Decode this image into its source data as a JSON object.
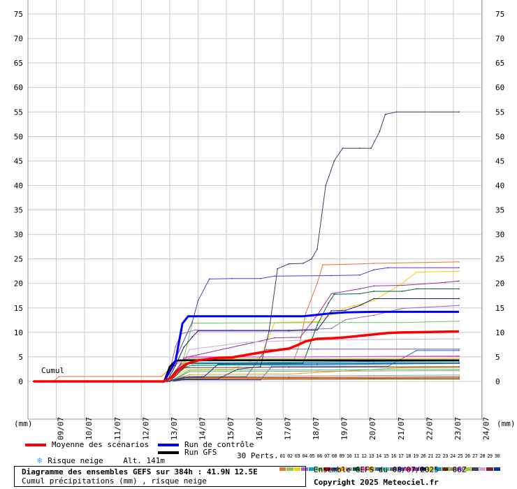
{
  "chart_data": {
    "type": "line",
    "y_axis": {
      "min": 0,
      "max": 75,
      "step": 5,
      "unit_label": "(mm)"
    },
    "cumul_label": "Cumul",
    "x_labels": [
      "09/07",
      "10/07",
      "11/07",
      "12/07",
      "13/07",
      "14/07",
      "15/07",
      "16/07",
      "17/07",
      "18/07",
      "19/07",
      "20/07",
      "21/07",
      "22/07",
      "23/07",
      "24/07"
    ],
    "x_domain": [
      0,
      16
    ],
    "grid": true,
    "colors": {
      "mean": "#ff0000",
      "control": "#0000ff",
      "gfs": "#000000",
      "snow": "#3aa0ff"
    },
    "mean": [
      [
        0,
        0
      ],
      [
        4.6,
        0
      ],
      [
        4.9,
        1
      ],
      [
        5.1,
        2.4
      ],
      [
        5.4,
        3.6
      ],
      [
        5.8,
        4.3
      ],
      [
        6.5,
        4.8
      ],
      [
        7.0,
        4.9
      ],
      [
        7.5,
        5.4
      ],
      [
        8.0,
        5.9
      ],
      [
        8.6,
        6.4
      ],
      [
        9.0,
        6.7
      ],
      [
        9.3,
        7.4
      ],
      [
        9.6,
        8.2
      ],
      [
        10.0,
        8.7
      ],
      [
        10.5,
        8.8
      ],
      [
        11.0,
        9.0
      ],
      [
        11.5,
        9.3
      ],
      [
        12.0,
        9.6
      ],
      [
        12.5,
        9.9
      ],
      [
        13.0,
        10.0
      ],
      [
        14.0,
        10.1
      ],
      [
        15.0,
        10.2
      ]
    ],
    "control": [
      [
        0,
        0
      ],
      [
        4.6,
        0
      ],
      [
        5.0,
        4
      ],
      [
        5.25,
        11.8
      ],
      [
        5.45,
        13.3
      ],
      [
        6.0,
        13.3
      ],
      [
        9.5,
        13.3
      ],
      [
        10.0,
        13.6
      ],
      [
        10.5,
        13.9
      ],
      [
        11.0,
        14.1
      ],
      [
        12.0,
        14.2
      ],
      [
        15.0,
        14.2
      ]
    ],
    "gfs": [
      [
        0,
        0
      ],
      [
        4.6,
        0
      ],
      [
        4.8,
        3
      ],
      [
        5.0,
        4.2
      ],
      [
        5.2,
        4.3
      ],
      [
        15.0,
        4.3
      ]
    ],
    "members": [
      {
        "color": "#e8743b",
        "points": [
          [
            0,
            0
          ],
          [
            0.7,
            0
          ],
          [
            0.9,
            1
          ],
          [
            4.5,
            1
          ],
          [
            4.8,
            2.5
          ],
          [
            5.3,
            4.6
          ],
          [
            9.2,
            4.6
          ],
          [
            9.4,
            8
          ],
          [
            9.6,
            14
          ],
          [
            10.0,
            20
          ],
          [
            10.2,
            23.8
          ],
          [
            11.0,
            23.9
          ],
          [
            12.0,
            24.1
          ],
          [
            15.0,
            24.4
          ]
        ]
      },
      {
        "color": "#8cc63f",
        "points": [
          [
            0,
            0
          ],
          [
            4.6,
            0
          ],
          [
            5.0,
            1.5
          ],
          [
            5.5,
            3.2
          ],
          [
            8.0,
            3.4
          ],
          [
            10.5,
            3.6
          ],
          [
            15,
            3.8
          ]
        ]
      },
      {
        "color": "#ffcc00",
        "points": [
          [
            0,
            0
          ],
          [
            4.7,
            0
          ],
          [
            5.4,
            2.4
          ],
          [
            7.0,
            2.5
          ],
          [
            8.0,
            5
          ],
          [
            8.5,
            12
          ],
          [
            10.0,
            12.2
          ],
          [
            11.0,
            15
          ],
          [
            12.0,
            16.5
          ],
          [
            13.0,
            20
          ],
          [
            13.5,
            22.3
          ],
          [
            15.0,
            22.5
          ]
        ]
      },
      {
        "color": "#9966cc",
        "points": [
          [
            0,
            0
          ],
          [
            4.6,
            0
          ],
          [
            4.8,
            2
          ],
          [
            5.0,
            7
          ],
          [
            5.2,
            9.7
          ],
          [
            5.7,
            10.5
          ],
          [
            7.0,
            10.5
          ],
          [
            8.5,
            10.5
          ],
          [
            9.0,
            10.5
          ],
          [
            10.5,
            10.8
          ],
          [
            11.0,
            12.6
          ],
          [
            12.0,
            13.5
          ],
          [
            13.0,
            14.9
          ],
          [
            15.0,
            15.5
          ]
        ]
      },
      {
        "color": "#00a3c7",
        "points": [
          [
            0,
            0
          ],
          [
            4.7,
            0
          ],
          [
            5.1,
            2.6
          ],
          [
            5.6,
            3.3
          ],
          [
            10,
            3.4
          ],
          [
            15,
            3.7
          ]
        ]
      },
      {
        "color": "#66cc66",
        "points": [
          [
            0,
            0
          ],
          [
            4.7,
            0
          ],
          [
            5.2,
            2.5
          ],
          [
            5.6,
            11.9
          ],
          [
            10.0,
            12.0
          ],
          [
            13.0,
            12.0
          ],
          [
            15.0,
            12.3
          ]
        ]
      },
      {
        "color": "#cc0000",
        "points": [
          [
            0,
            0
          ],
          [
            4.8,
            0
          ],
          [
            5.3,
            0.8
          ],
          [
            9,
            0.8
          ],
          [
            15,
            0.9
          ]
        ]
      },
      {
        "color": "#3366cc",
        "points": [
          [
            0,
            0
          ],
          [
            4.8,
            0
          ],
          [
            5.3,
            0.3
          ],
          [
            8,
            0.3
          ],
          [
            8.4,
            3.1
          ],
          [
            12.5,
            3.1
          ],
          [
            13.5,
            6.3
          ],
          [
            15,
            6.3
          ]
        ]
      },
      {
        "color": "#ff9900",
        "points": [
          [
            0,
            0
          ],
          [
            4.8,
            0
          ],
          [
            5.5,
            1.4
          ],
          [
            9,
            1.5
          ],
          [
            13,
            2.8
          ],
          [
            15,
            2.9
          ]
        ]
      },
      {
        "color": "#999999",
        "points": [
          [
            0,
            0
          ],
          [
            4.8,
            0
          ],
          [
            5.2,
            1.0
          ],
          [
            12,
            1.2
          ],
          [
            15,
            1.3
          ]
        ]
      },
      {
        "color": "#006633",
        "points": [
          [
            0,
            0
          ],
          [
            4.7,
            0
          ],
          [
            5.2,
            3.6
          ],
          [
            9.5,
            3.7
          ],
          [
            10.0,
            11.5
          ],
          [
            10.4,
            16.0
          ],
          [
            10.6,
            17.8
          ],
          [
            11.5,
            17.9
          ],
          [
            12.0,
            18.4
          ],
          [
            13.0,
            18.4
          ],
          [
            13.5,
            18.9
          ],
          [
            15.0,
            18.9
          ]
        ]
      },
      {
        "color": "#ff66cc",
        "points": [
          [
            0,
            0
          ],
          [
            4.8,
            0
          ],
          [
            5.3,
            4.2
          ],
          [
            8.5,
            4.3
          ],
          [
            15,
            4.4
          ]
        ]
      },
      {
        "color": "#cc9900",
        "points": [
          [
            0,
            0
          ],
          [
            4.8,
            0
          ],
          [
            5.4,
            0.6
          ],
          [
            10,
            0.6
          ],
          [
            15,
            0.7
          ]
        ]
      },
      {
        "color": "#336699",
        "points": [
          [
            0,
            0
          ],
          [
            4.8,
            0
          ],
          [
            5.0,
            1.5
          ],
          [
            5.5,
            3.8
          ],
          [
            15,
            4.2
          ]
        ]
      },
      {
        "color": "#33cc99",
        "points": [
          [
            0,
            0
          ],
          [
            4.8,
            0
          ],
          [
            5.5,
            2.3
          ],
          [
            11,
            2.4
          ],
          [
            15,
            2.5
          ]
        ]
      },
      {
        "color": "#666699",
        "points": [
          [
            0,
            0
          ],
          [
            4.9,
            0
          ],
          [
            5.5,
            1.0
          ],
          [
            7.5,
            1.0
          ],
          [
            8.2,
            6.5
          ],
          [
            9.0,
            6.6
          ],
          [
            10,
            6.6
          ],
          [
            15,
            6.6
          ]
        ]
      },
      {
        "color": "#6633cc",
        "points": [
          [
            0,
            0
          ],
          [
            4.6,
            0
          ],
          [
            5.0,
            4.5
          ],
          [
            5.6,
            12.2
          ],
          [
            5.8,
            16.5
          ],
          [
            6.2,
            20.9
          ],
          [
            7.0,
            21.0
          ],
          [
            8.0,
            21.0
          ],
          [
            8.5,
            21.5
          ],
          [
            10.5,
            21.6
          ],
          [
            11.5,
            21.7
          ],
          [
            12.0,
            22.8
          ],
          [
            12.5,
            23.2
          ],
          [
            15.0,
            23.2
          ]
        ]
      },
      {
        "color": "#ff3399",
        "points": [
          [
            0,
            0
          ],
          [
            4.8,
            0
          ],
          [
            5.4,
            5.0
          ],
          [
            9.5,
            5.0
          ],
          [
            15,
            5.1
          ]
        ]
      },
      {
        "color": "#993399",
        "points": [
          [
            0,
            0
          ],
          [
            4.8,
            0
          ],
          [
            5.3,
            4.8
          ],
          [
            8.5,
            8.9
          ],
          [
            9.4,
            9.0
          ],
          [
            10.0,
            13.5
          ],
          [
            10.5,
            17.9
          ],
          [
            11.5,
            18.9
          ],
          [
            12.0,
            19.5
          ],
          [
            13.0,
            19.6
          ],
          [
            14.5,
            20.2
          ],
          [
            15.0,
            20.5
          ]
        ]
      },
      {
        "color": "#1a1a66",
        "points": [
          [
            0,
            0
          ],
          [
            4.7,
            0
          ],
          [
            5.0,
            3.2
          ],
          [
            5.3,
            7.0
          ],
          [
            5.6,
            9.1
          ],
          [
            5.8,
            10.3
          ],
          [
            9.0,
            10.3
          ],
          [
            10.0,
            10.5
          ],
          [
            10.5,
            14.4
          ],
          [
            11.0,
            14.5
          ],
          [
            11.5,
            15.5
          ],
          [
            12.0,
            16.9
          ],
          [
            15.0,
            16.9
          ]
        ]
      },
      {
        "color": "#cccc00",
        "points": [
          [
            0,
            0
          ],
          [
            4.8,
            0
          ],
          [
            5.4,
            4.5
          ],
          [
            10,
            4.6
          ],
          [
            15,
            4.7
          ]
        ]
      },
      {
        "color": "#0099cc",
        "points": [
          [
            0,
            0
          ],
          [
            4.8,
            0
          ],
          [
            5.5,
            3.8
          ],
          [
            12,
            3.9
          ],
          [
            15,
            4.0
          ]
        ]
      },
      {
        "color": "#663300",
        "points": [
          [
            0,
            0
          ],
          [
            4.8,
            0
          ],
          [
            5.3,
            0.4
          ],
          [
            12,
            0.5
          ],
          [
            15,
            0.5
          ]
        ]
      },
      {
        "color": "#999966",
        "points": [
          [
            0,
            0
          ],
          [
            4.8,
            0
          ],
          [
            5.5,
            2.0
          ],
          [
            10,
            2.1
          ],
          [
            15,
            2.2
          ]
        ]
      },
      {
        "color": "#cc66ff",
        "points": [
          [
            0,
            0
          ],
          [
            4.8,
            0
          ],
          [
            5.5,
            4.9
          ],
          [
            9.5,
            5.0
          ],
          [
            15,
            5.2
          ]
        ]
      },
      {
        "color": "#99cc33",
        "points": [
          [
            0,
            0
          ],
          [
            4.8,
            0
          ],
          [
            5.4,
            4.2
          ],
          [
            9,
            4.3
          ],
          [
            15,
            4.4
          ]
        ]
      },
      {
        "color": "#334466",
        "points": [
          [
            0,
            0
          ],
          [
            4.7,
            0
          ],
          [
            5.3,
            0.5
          ],
          [
            6.5,
            0.5
          ],
          [
            7.2,
            2.5
          ],
          [
            8.0,
            3.0
          ],
          [
            8.3,
            10.2
          ],
          [
            8.6,
            23.0
          ],
          [
            9.0,
            24.0
          ],
          [
            9.5,
            24.1
          ],
          [
            9.8,
            25.0
          ],
          [
            10.0,
            27.0
          ],
          [
            10.3,
            40.0
          ],
          [
            10.6,
            45.0
          ],
          [
            10.9,
            47.6
          ],
          [
            11.5,
            47.6
          ],
          [
            11.9,
            47.6
          ],
          [
            12.2,
            51.0
          ],
          [
            12.4,
            54.5
          ],
          [
            12.8,
            55.0
          ],
          [
            15.0,
            55.0
          ]
        ]
      },
      {
        "color": "#ccaacc",
        "points": [
          [
            0,
            0
          ],
          [
            4.9,
            0
          ],
          [
            5.5,
            6.5
          ],
          [
            7.5,
            8.0
          ],
          [
            9.0,
            8.3
          ],
          [
            10.0,
            8.5
          ],
          [
            13.0,
            8.6
          ],
          [
            15.0,
            8.7
          ]
        ]
      },
      {
        "color": "#882222",
        "points": [
          [
            0,
            0
          ],
          [
            4.8,
            0
          ],
          [
            5.3,
            2.8
          ],
          [
            9,
            2.9
          ],
          [
            15,
            3.0
          ]
        ]
      },
      {
        "color": "#0033aa",
        "points": [
          [
            0,
            0
          ],
          [
            4.7,
            0
          ],
          [
            5.3,
            0.8
          ],
          [
            6.0,
            0.9
          ],
          [
            6.5,
            3.5
          ],
          [
            10,
            3.6
          ],
          [
            15,
            3.7
          ]
        ]
      }
    ]
  },
  "legend": {
    "mean": "Moyenne des scénarios",
    "control": "Run de contrôle",
    "gfs": "Run GFS",
    "snow": "Risque neige",
    "altitude": "Alt. 141m",
    "perts": "30 Perts."
  },
  "perts": {
    "numbers": [
      "01",
      "02",
      "03",
      "04",
      "05",
      "06",
      "07",
      "08",
      "09",
      "10",
      "11",
      "12",
      "13",
      "14",
      "15",
      "16",
      "17",
      "18",
      "19",
      "20",
      "21",
      "22",
      "23",
      "24",
      "25",
      "26",
      "27",
      "28",
      "29",
      "30"
    ]
  },
  "footer": {
    "title": "Diagramme des ensembles GEFS sur 384h : 41.9N 12.5E",
    "subtitle": "Cumul précipitations (mm) , risque neige",
    "ensemble": "Ensemble GEFS du 08/07/2025 - 06Z",
    "copyright": "Copyright 2025 Meteociel.fr"
  }
}
